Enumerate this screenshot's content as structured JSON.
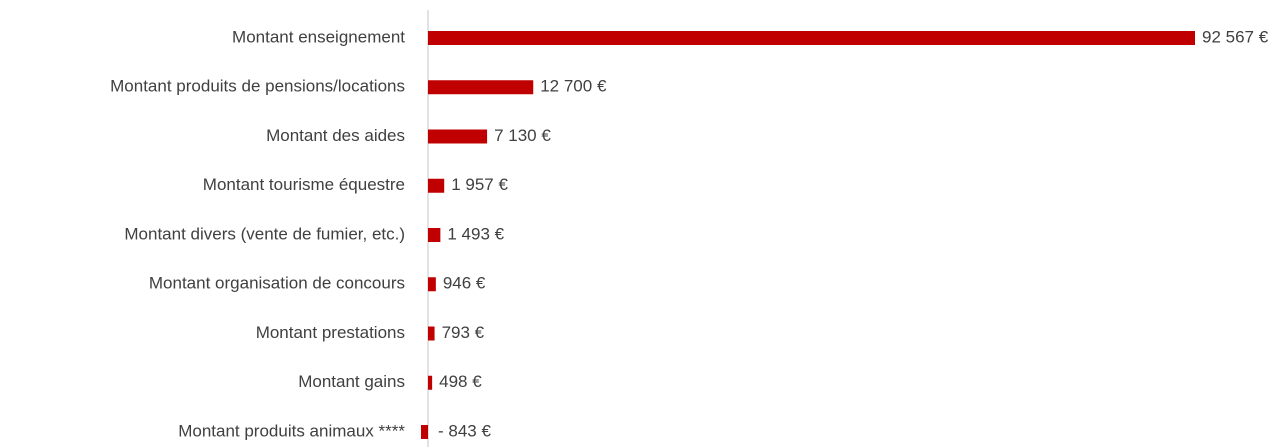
{
  "chart_data": {
    "type": "hbar",
    "categories": [
      "Montant enseignement",
      "Montant produits de pensions/locations",
      "Montant des aides",
      "Montant tourisme équestre",
      "Montant divers (vente de fumier, etc.)",
      "Montant organisation de concours",
      "Montant prestations",
      "Montant gains",
      "Montant produits animaux ****"
    ],
    "values": [
      92567,
      12700,
      7130,
      1957,
      1493,
      946,
      793,
      498,
      -843
    ],
    "value_labels": [
      "92 567 €",
      "12 700 €",
      "7 130 €",
      "1 957 €",
      "1 493 €",
      "946 €",
      "793 €",
      "498 €",
      "- 843 €"
    ],
    "color": "#c00000"
  }
}
